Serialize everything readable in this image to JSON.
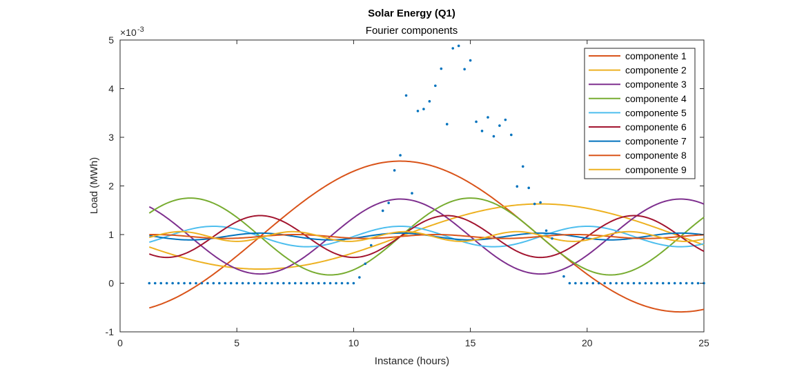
{
  "chart_data": {
    "type": "line",
    "title": "Solar Energy (Q1)",
    "subtitle": "Fourier components",
    "xlabel": "Instance (hours)",
    "ylabel": "Load (MWh)",
    "y_exponent_label": "×10",
    "y_exponent": "-3",
    "xlim": [
      0,
      25
    ],
    "ylim": [
      -1,
      5
    ],
    "y_scale_factor": 0.001,
    "x_ticks": [
      0,
      5,
      10,
      15,
      20,
      25
    ],
    "y_ticks": [
      -1,
      0,
      1,
      2,
      3,
      4,
      5
    ],
    "x_tick_labels": [
      "0",
      "5",
      "10",
      "15",
      "20",
      "25"
    ],
    "y_tick_labels": [
      "-1",
      "0",
      "1",
      "2",
      "3",
      "4",
      "5"
    ],
    "grid": false,
    "legend_position": "top-right",
    "x_domain": [
      1.25,
      25
    ],
    "data_points": {
      "color": "#0072BD",
      "points": [
        [
          1.25,
          0
        ],
        [
          1.5,
          0
        ],
        [
          1.75,
          0
        ],
        [
          2.0,
          0
        ],
        [
          2.25,
          0
        ],
        [
          2.5,
          0
        ],
        [
          2.75,
          0
        ],
        [
          3.0,
          0
        ],
        [
          3.25,
          0
        ],
        [
          3.5,
          0
        ],
        [
          3.75,
          0
        ],
        [
          4.0,
          0
        ],
        [
          4.25,
          0
        ],
        [
          4.5,
          0
        ],
        [
          4.75,
          0
        ],
        [
          5.0,
          0
        ],
        [
          5.25,
          0
        ],
        [
          5.5,
          0
        ],
        [
          5.75,
          0
        ],
        [
          6.0,
          0
        ],
        [
          6.25,
          0
        ],
        [
          6.5,
          0
        ],
        [
          6.75,
          0
        ],
        [
          7.0,
          0
        ],
        [
          7.25,
          0
        ],
        [
          7.5,
          0
        ],
        [
          7.75,
          0
        ],
        [
          8.0,
          0
        ],
        [
          8.25,
          0
        ],
        [
          8.5,
          0
        ],
        [
          8.75,
          0
        ],
        [
          9.0,
          0
        ],
        [
          9.25,
          0
        ],
        [
          9.5,
          0
        ],
        [
          9.75,
          0
        ],
        [
          10.0,
          0
        ],
        [
          10.25,
          0.12
        ],
        [
          10.5,
          0.4
        ],
        [
          10.75,
          0.78
        ],
        [
          11.25,
          1.49
        ],
        [
          11.5,
          1.65
        ],
        [
          11.75,
          2.32
        ],
        [
          12.0,
          2.63
        ],
        [
          12.25,
          3.86
        ],
        [
          12.5,
          1.85
        ],
        [
          12.75,
          3.54
        ],
        [
          13.0,
          3.58
        ],
        [
          13.25,
          3.74
        ],
        [
          13.5,
          4.06
        ],
        [
          13.75,
          4.41
        ],
        [
          14.0,
          3.27
        ],
        [
          14.25,
          4.83
        ],
        [
          14.5,
          4.88
        ],
        [
          14.75,
          4.4
        ],
        [
          15.0,
          4.58
        ],
        [
          15.25,
          3.32
        ],
        [
          15.5,
          3.13
        ],
        [
          15.75,
          3.41
        ],
        [
          16.0,
          3.02
        ],
        [
          16.25,
          3.24
        ],
        [
          16.5,
          3.36
        ],
        [
          16.75,
          3.05
        ],
        [
          17.0,
          1.99
        ],
        [
          17.25,
          2.4
        ],
        [
          17.5,
          1.96
        ],
        [
          17.75,
          1.63
        ],
        [
          18.0,
          1.66
        ],
        [
          18.25,
          1.08
        ],
        [
          18.5,
          0.92
        ],
        [
          19.0,
          0.14
        ],
        [
          19.25,
          0
        ],
        [
          19.5,
          0
        ],
        [
          19.75,
          0
        ],
        [
          20.0,
          0
        ],
        [
          20.25,
          0
        ],
        [
          20.5,
          0
        ],
        [
          20.75,
          0
        ],
        [
          21.0,
          0
        ],
        [
          21.25,
          0
        ],
        [
          21.5,
          0
        ],
        [
          21.75,
          0
        ],
        [
          22.0,
          0
        ],
        [
          22.25,
          0
        ],
        [
          22.5,
          0
        ],
        [
          22.75,
          0
        ],
        [
          23.0,
          0
        ],
        [
          23.25,
          0
        ],
        [
          23.5,
          0
        ],
        [
          23.75,
          0
        ],
        [
          24.0,
          0
        ],
        [
          24.25,
          0
        ],
        [
          24.5,
          0
        ],
        [
          24.75,
          0
        ],
        [
          25.0,
          0
        ]
      ]
    },
    "series": [
      {
        "name": "componente 1",
        "color": "#D95319",
        "offset": 0.96,
        "amplitude": 1.55,
        "period": 24,
        "phase_x": 12
      },
      {
        "name": "componente 2",
        "color": "#EDB120",
        "offset": 0.96,
        "amplitude": 0.67,
        "period": 24,
        "phase_x": 18
      },
      {
        "name": "componente 3",
        "color": "#7E2F8E",
        "offset": 0.96,
        "amplitude": 0.77,
        "period": 12,
        "phase_x": 12
      },
      {
        "name": "componente 4",
        "color": "#77AC30",
        "offset": 0.96,
        "amplitude": 0.79,
        "period": 12,
        "phase_x": 15
      },
      {
        "name": "componente 5",
        "color": "#4DBEEE",
        "offset": 0.96,
        "amplitude": 0.21,
        "period": 8,
        "phase_x": 12
      },
      {
        "name": "componente 6",
        "color": "#A2142F",
        "offset": 0.96,
        "amplitude": 0.43,
        "period": 8,
        "phase_x": 14
      },
      {
        "name": "componente 7",
        "color": "#0072BD",
        "offset": 0.96,
        "amplitude": 0.07,
        "period": 6,
        "phase_x": 12
      },
      {
        "name": "componente 8",
        "color": "#D95319",
        "offset": 0.96,
        "amplitude": 0.04,
        "period": 6,
        "phase_x": 13.5
      },
      {
        "name": "componente 9",
        "color": "#EDB120",
        "offset": 0.96,
        "amplitude": 0.1,
        "period": 4.8,
        "phase_x": 12.2
      }
    ]
  }
}
